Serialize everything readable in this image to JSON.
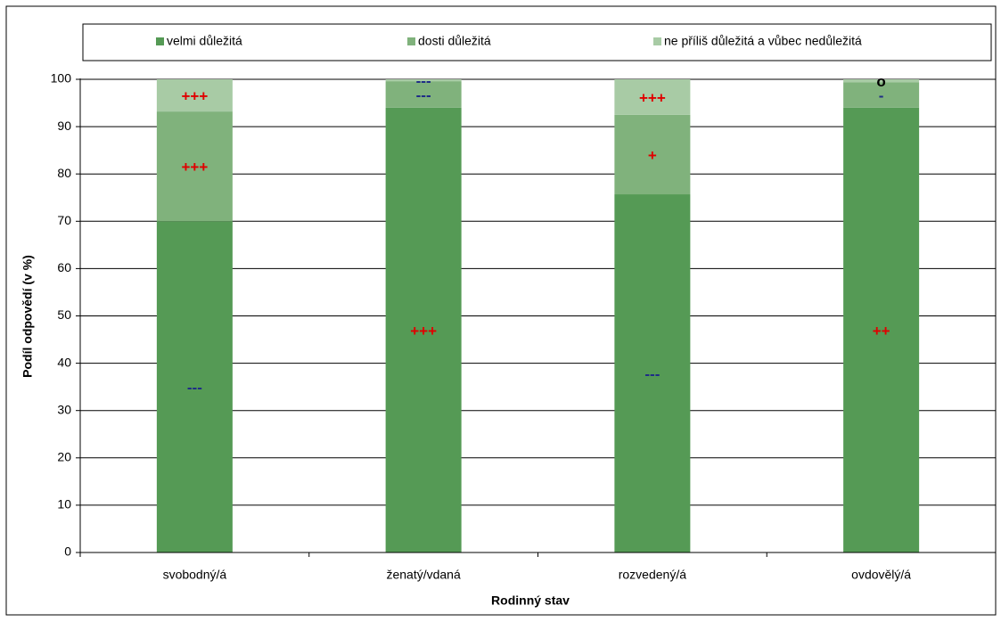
{
  "chart_data": {
    "type": "stacked_bar",
    "x_label": "Rodinný stav",
    "y_label": "Podíl odpovědí (v %)",
    "categories": [
      "svobodný/á",
      "ženatý/vdaná",
      "rozvedený/á",
      "ovdovělý/á"
    ],
    "series": [
      {
        "name": "velmi důležitá",
        "color": "#559a55",
        "values": [
          70,
          94,
          75.7,
          94
        ],
        "markers": [
          "---",
          "+++",
          "---",
          "++"
        ]
      },
      {
        "name": "dosti důležitá",
        "color": "#80b27c",
        "values": [
          23.2,
          5.6,
          16.8,
          5.4
        ],
        "markers": [
          "+++",
          "---",
          "+",
          "-"
        ]
      },
      {
        "name": "ne příliš důležitá a vůbec nedůležitá",
        "color": "#a8cba5",
        "values": [
          6.8,
          0.4,
          7.5,
          0.6
        ],
        "markers": [
          "+++",
          "---",
          "+++",
          "o"
        ]
      }
    ],
    "marker_colors": {
      "+": "#e00000",
      "-": "#1f2d86",
      "o": "#000000"
    },
    "ylim": [
      0,
      100
    ],
    "yticks": [
      0,
      10,
      20,
      30,
      40,
      50,
      60,
      70,
      80,
      90,
      100
    ],
    "grid": true,
    "legend": "top"
  }
}
